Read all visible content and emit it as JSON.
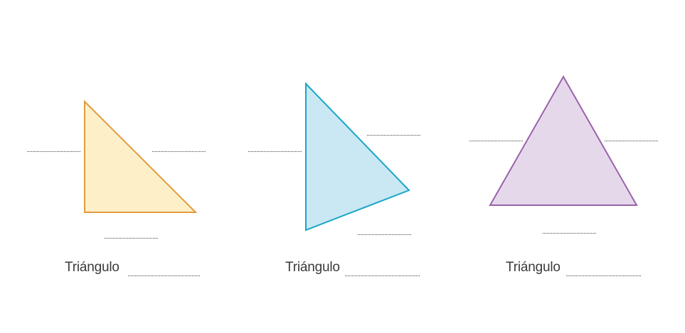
{
  "worksheet": {
    "triangles": [
      {
        "caption": "Triángulo",
        "fill": "#fdf0c8",
        "stroke": "#e39a3f"
      },
      {
        "caption": "Triángulo",
        "fill": "#c9e8f3",
        "stroke": "#1aa6c6"
      },
      {
        "caption": "Triángulo",
        "fill": "#e6d8eb",
        "stroke": "#9a62aa"
      }
    ],
    "answer_line_color": "#444444"
  }
}
